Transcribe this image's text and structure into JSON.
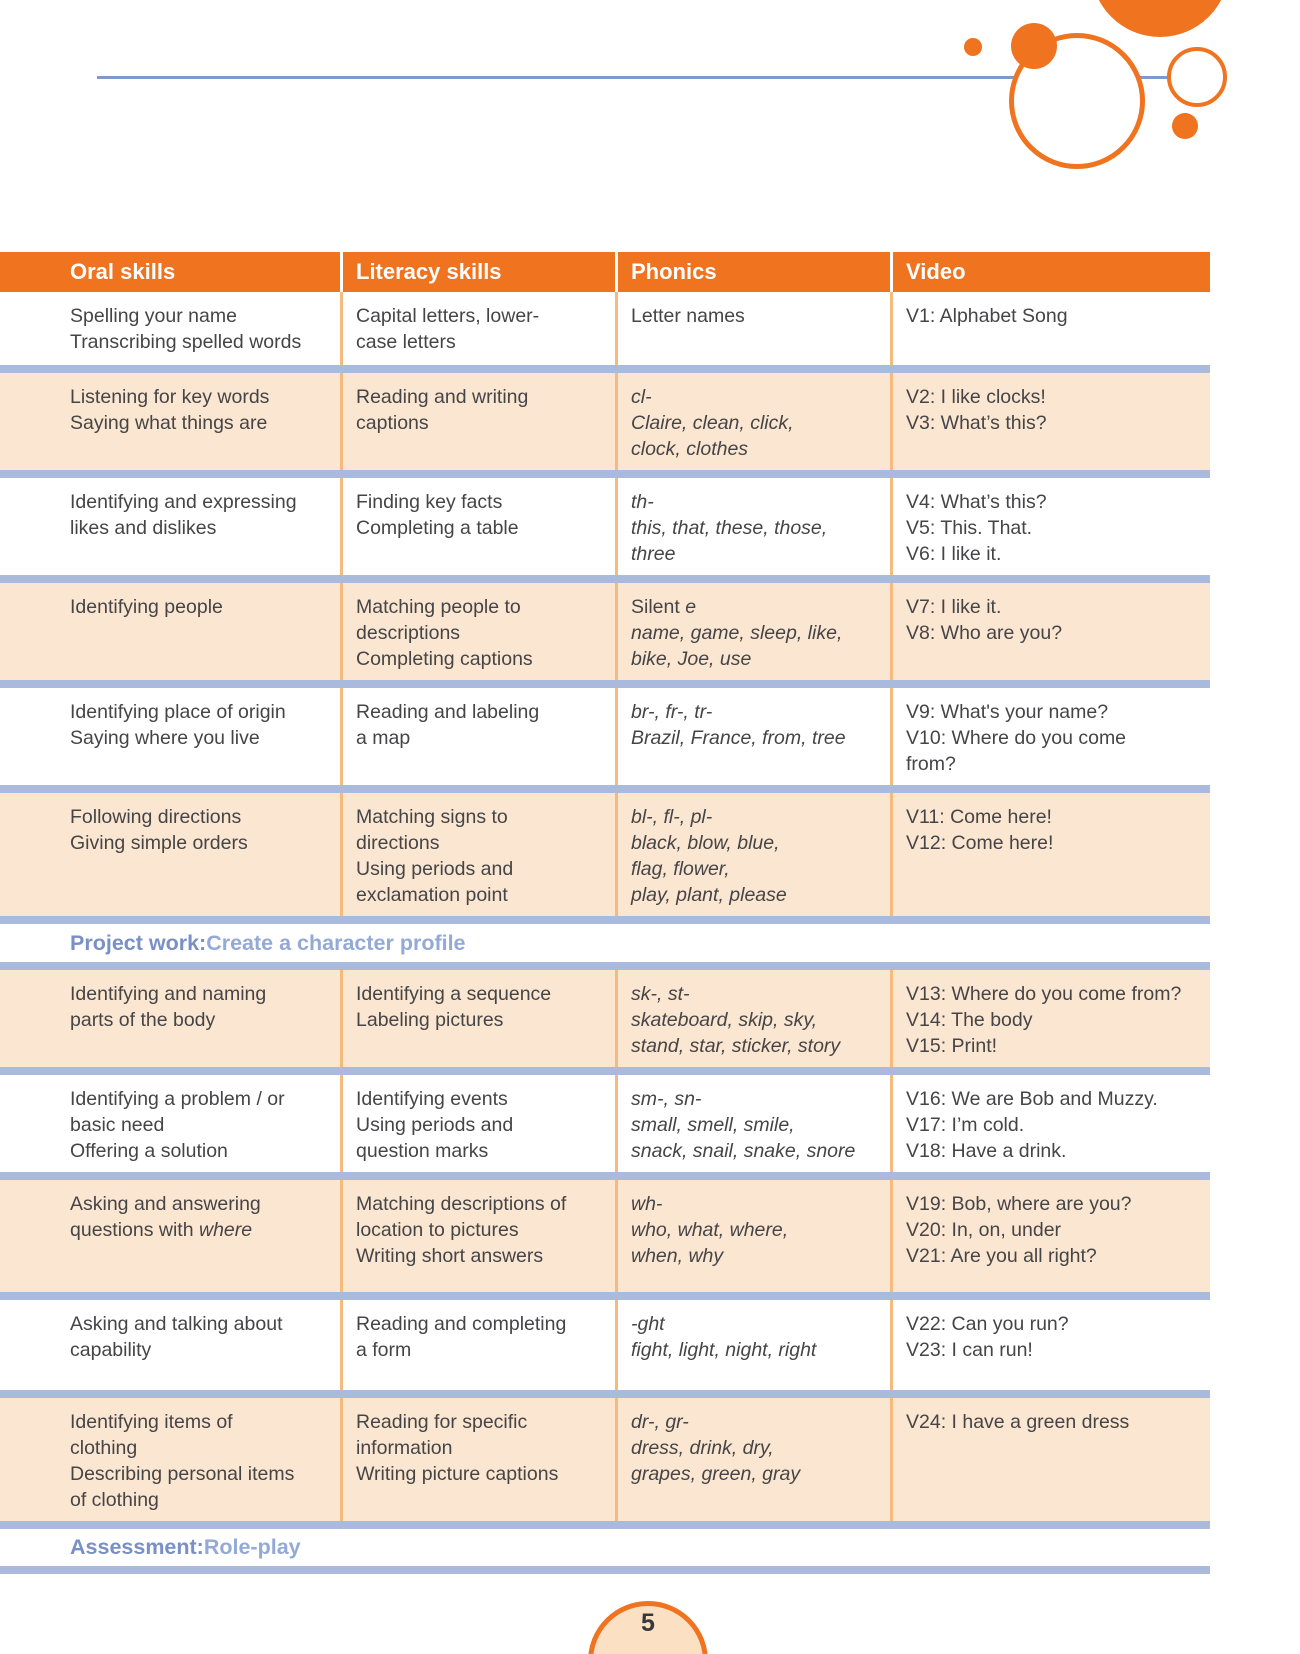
{
  "colors": {
    "orange": "#F0731F",
    "peach_row": "#FBE6D1",
    "column_divider_orange": "#F6BA7D",
    "divider_bar_blue": "#AABADC",
    "heading_blue": "#7990C6",
    "heading_blue_light": "#93A9D6",
    "top_rule_blue": "#7E99CB",
    "body_text": "#454547",
    "page_circle_fill": "#FBE0C3"
  },
  "page": {
    "number": "5"
  },
  "table": {
    "headers": [
      "Oral skills",
      "Literacy skills",
      "Phonics",
      "Video"
    ],
    "rows": [
      {
        "oral": "Spelling your name\nTranscribing spelled words",
        "literacy": "Capital letters, lower-\ncase letters",
        "phonics": "Letter names",
        "video": "V1: Alphabet Song"
      },
      {
        "oral": "Listening for key words\nSaying what things are",
        "literacy": "Reading and writing\ncaptions",
        "phonics": "cl-\nClaire, clean, click,\nclock, clothes",
        "video": "V2: I like clocks!\nV3: What’s this?"
      },
      {
        "oral": "Identifying and expressing\nlikes and dislikes",
        "literacy": "Finding key facts\nCompleting a table",
        "phonics": "th-\nthis, that, these, those,\nthree",
        "video": "V4: What’s this?\nV5: This. That.\nV6: I like it."
      },
      {
        "oral": "Identifying people",
        "literacy": "Matching people to\ndescriptions\nCompleting captions",
        "phonics_pre": "Silent ",
        "phonics_e": "e",
        "phonics_words": "name, game, sleep, like,\nbike, Joe, use",
        "video": "V7: I like it.\nV8: Who are you?"
      },
      {
        "oral": "Identifying place of origin\nSaying where you live",
        "literacy": "Reading and labeling\na map",
        "phonics": "br-, fr-, tr-\nBrazil, France, from, tree",
        "video": "V9: What's your name?\nV10: Where do you come\nfrom?"
      },
      {
        "oral": "Following directions\nGiving simple orders",
        "literacy": "Matching signs to\ndirections\nUsing periods and\nexclamation point",
        "phonics": "bl-, fl-, pl-\nblack, blow, blue,\nflag, flower,\nplay, plant, please",
        "video": "V11: Come here!\nV12: Come here!"
      },
      {
        "oral": "Identifying and naming\nparts of the body",
        "literacy": "Identifying a sequence\nLabeling pictures",
        "phonics": "sk-, st-\nskateboard, skip, sky,\nstand, star, sticker, story",
        "video": "V13: Where do you come from?\nV14: The body\nV15: Print!"
      },
      {
        "oral": "Identifying a problem / or\nbasic need\nOffering a solution",
        "literacy": "Identifying events\nUsing periods and\nquestion marks",
        "phonics": "sm-, sn-\nsmall, smell, smile,\nsnack, snail, snake, snore",
        "video": "V16: We are Bob and Muzzy.\nV17: I’m cold.\nV18: Have a drink."
      },
      {
        "oral_pre": "Asking and answering\nquestions with ",
        "oral_italic": "where",
        "literacy": "Matching descriptions of\nlocation to pictures\nWriting short answers",
        "phonics": "wh-\nwho, what, where,\nwhen, why",
        "video": "V19: Bob, where are you?\nV20: In, on, under\nV21: Are you all right?"
      },
      {
        "oral": "Asking and talking about\ncapability",
        "literacy": "Reading and completing\na form",
        "phonics": "-ght\nfight, light, night, right",
        "video": "V22: Can you run?\nV23: I can run!"
      },
      {
        "oral": "Identifying items of\nclothing\nDescribing personal items\nof clothing",
        "literacy": "Reading for specific\ninformation\nWriting picture captions",
        "phonics": "dr-, gr-\ndress, drink, dry,\ngrapes, green, gray",
        "video": "V24: I have a green dress"
      }
    ],
    "bands": {
      "project": {
        "prefix": "Project work:",
        "text": " Create a character profile"
      },
      "assessment": {
        "prefix": "Assessment:",
        "text": " Role-play"
      }
    }
  }
}
